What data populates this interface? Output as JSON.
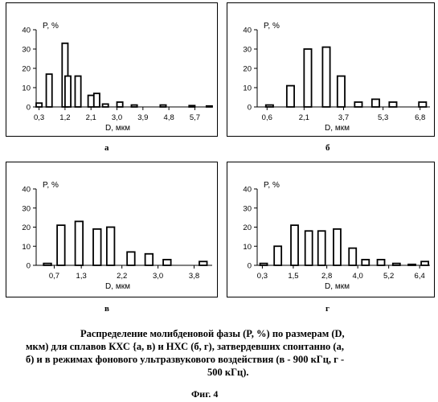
{
  "chart_data": [
    {
      "type": "bar",
      "panel_label": "а",
      "ylabel": "P, %",
      "xlabel": "D, мкм",
      "ylim": [
        0,
        40
      ],
      "yticks": [
        "0",
        "10",
        "20",
        "30",
        "40"
      ],
      "x_tick_labels": [
        "0,3",
        "1,2",
        "2,1",
        "3,0",
        "3,9",
        "4,8",
        "5,7"
      ],
      "x_tick_values": [
        0.3,
        1.2,
        2.1,
        3.0,
        3.9,
        4.8,
        5.7
      ],
      "xlim": [
        0.2,
        6.3
      ],
      "bar_width": 0.2,
      "x": [
        0.3,
        0.65,
        1.2,
        1.3,
        1.65,
        2.1,
        2.3,
        2.6,
        3.1,
        3.6,
        4.6,
        5.6,
        6.2
      ],
      "values": [
        2,
        17,
        33,
        16,
        16,
        6,
        7,
        1.5,
        2.5,
        1,
        1,
        0.7,
        0.5
      ]
    },
    {
      "type": "bar",
      "panel_label": "б",
      "ylabel": "P, %",
      "xlabel": "D, мкм",
      "ylim": [
        0,
        40
      ],
      "yticks": [
        "0",
        "10",
        "20",
        "30",
        "40"
      ],
      "x_tick_labels": [
        "0,6",
        "2,1",
        "3,7",
        "5,3",
        "6,8"
      ],
      "x_tick_values": [
        0.6,
        2.1,
        3.7,
        5.3,
        6.8
      ],
      "xlim": [
        0.2,
        7.2
      ],
      "bar_width": 0.3,
      "x": [
        0.7,
        1.55,
        2.25,
        3.0,
        3.6,
        4.3,
        5.0,
        5.7,
        6.9
      ],
      "values": [
        1,
        11,
        30,
        31,
        16,
        2.5,
        4,
        2.5,
        2.5
      ]
    },
    {
      "type": "bar",
      "panel_label": "в",
      "ylabel": "P, %",
      "xlabel": "D, мкм",
      "ylim": [
        0,
        40
      ],
      "yticks": [
        "0",
        "10",
        "20",
        "30",
        "40"
      ],
      "x_tick_labels": [
        "0,7",
        "1,3",
        "2,2",
        "3,0",
        "3,8"
      ],
      "x_tick_values": [
        0.7,
        1.3,
        2.2,
        3.0,
        3.8
      ],
      "xlim": [
        0.3,
        4.2
      ],
      "bar_width": 0.17,
      "x": [
        0.55,
        0.85,
        1.25,
        1.65,
        1.95,
        2.4,
        2.8,
        3.2,
        4.0
      ],
      "values": [
        1,
        21,
        23,
        19,
        20,
        7,
        6,
        3,
        2
      ]
    },
    {
      "type": "bar",
      "panel_label": "г",
      "ylabel": "P, %",
      "xlabel": "D, мкм",
      "ylim": [
        0,
        40
      ],
      "yticks": [
        "0",
        "10",
        "20",
        "30",
        "40"
      ],
      "x_tick_labels": [
        "0,3",
        "1,5",
        "2,8",
        "4,0",
        "5,2",
        "6,4"
      ],
      "x_tick_values": [
        0.3,
        1.5,
        2.8,
        4.0,
        5.2,
        6.4
      ],
      "xlim": [
        0.1,
        6.8
      ],
      "bar_width": 0.28,
      "x": [
        0.35,
        0.9,
        1.55,
        2.1,
        2.6,
        3.2,
        3.8,
        4.3,
        4.9,
        5.5,
        6.1,
        6.6
      ],
      "values": [
        1,
        10,
        21,
        18,
        18,
        19,
        9,
        3,
        3,
        1,
        0.5,
        2
      ]
    }
  ],
  "caption": {
    "line1": "Распределение молибденовой фазы (P, %) по размерам (D,",
    "line2": "мкм) для сплавов КХС {а, в) и НХС (б, г), затвердевших спонтанно (а,",
    "line3": "б) и в режимах фонового ультразвукового воздействия (в - 900 кГц, г -",
    "line4": "500 кГц)."
  },
  "figure_label": "Фиг. 4"
}
